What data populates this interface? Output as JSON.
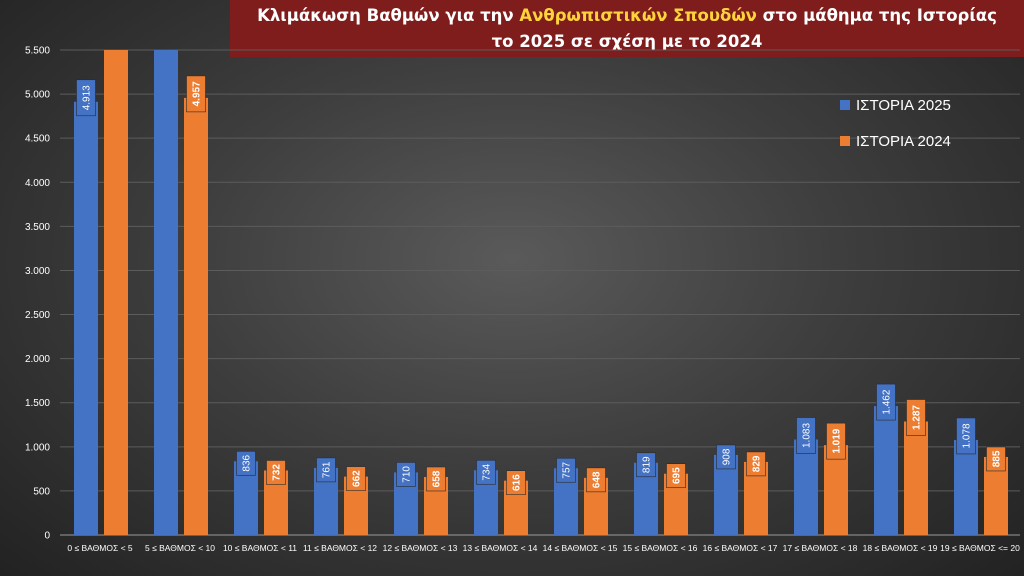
{
  "title": {
    "line1_before": "Κλιμάκωση Βαθμών για την ",
    "line1_highlight": "Ανθρωπιστικών Σπουδών",
    "line1_after": " στο μάθημα της  Ιστορίας",
    "line2": "το 2025 σε σχέση με το 2024"
  },
  "colors": {
    "series_2025": "#4472c4",
    "series_2024": "#ed7d31",
    "title_bg": "#7f1d1d",
    "title_highlight": "#ffd43b"
  },
  "chart_data": {
    "type": "bar",
    "title": "Κλιμάκωση Βαθμών για την Ανθρωπιστικών Σπουδών στο μάθημα της  Ιστορίας το 2025 σε σχέση με το 2024",
    "categories": [
      "0 ≤ ΒΑΘΜΟΣ < 5",
      "5 ≤ ΒΑΘΜΟΣ < 10",
      "10 ≤ ΒΑΘΜΟΣ < 11",
      "11 ≤ ΒΑΘΜΟΣ < 12",
      "12 ≤ ΒΑΘΜΟΣ < 13",
      "13 ≤ ΒΑΘΜΟΣ < 14",
      "14 ≤ ΒΑΘΜΟΣ < 15",
      "15 ≤ ΒΑΘΜΟΣ < 16",
      "16 ≤ ΒΑΘΜΟΣ < 17",
      "17 ≤ ΒΑΘΜΟΣ < 18",
      "18 ≤ ΒΑΘΜΟΣ < 19",
      "19 ≤ ΒΑΘΜΟΣ <= 20"
    ],
    "series": [
      {
        "name": "ΙΣΤΟΡΙΑ 2025",
        "color": "#4472c4",
        "values": [
          4913,
          5500,
          836,
          761,
          710,
          734,
          757,
          819,
          908,
          1083,
          1462,
          1078
        ],
        "labels": [
          "4.913",
          "",
          "836",
          "761",
          "710",
          "734",
          "757",
          "819",
          "908",
          "1.083",
          "1.462",
          "1.078"
        ]
      },
      {
        "name": "ΙΣΤΟΡΙΑ 2024",
        "color": "#ed7d31",
        "values": [
          5500,
          4957,
          732,
          662,
          658,
          616,
          648,
          695,
          829,
          1019,
          1287,
          885
        ],
        "labels": [
          "",
          "4.957",
          "732",
          "662",
          "658",
          "616",
          "648",
          "695",
          "829",
          "1.019",
          "1.287",
          "885"
        ]
      }
    ],
    "ylim": [
      0,
      5500
    ],
    "yticks": [
      0,
      500,
      1000,
      1500,
      2000,
      2500,
      3000,
      3500,
      4000,
      4500,
      5000,
      5500
    ],
    "ytick_labels": [
      "0",
      "500",
      "1.000",
      "1.500",
      "2.000",
      "2.500",
      "3.000",
      "3.500",
      "4.000",
      "4.500",
      "5.000",
      "5.500"
    ],
    "grid": true,
    "legend_position": "right"
  }
}
